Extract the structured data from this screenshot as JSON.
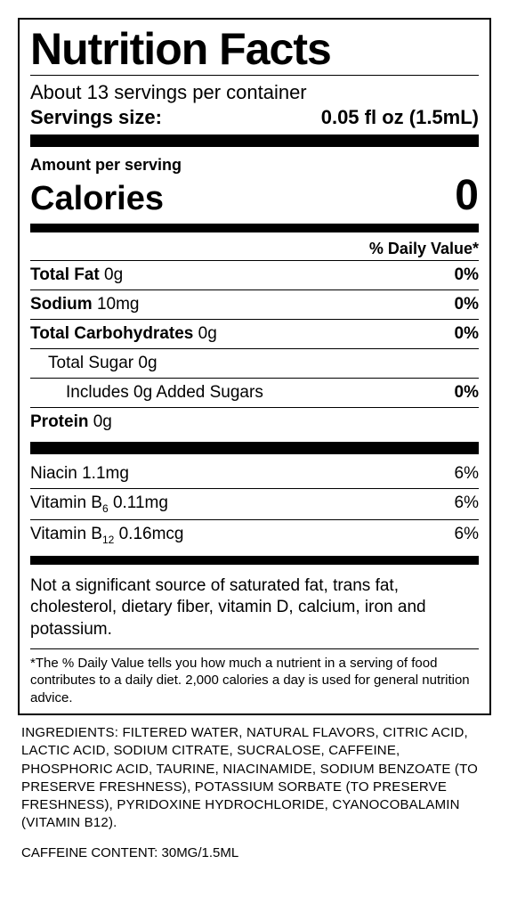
{
  "title": "Nutrition Facts",
  "servings_per_container": "About 13 servings per container",
  "serving_size": {
    "label": "Servings size:",
    "value": "0.05 fl oz (1.5mL)"
  },
  "amount_per_serving": "Amount per serving",
  "calories": {
    "label": "Calories",
    "value": "0"
  },
  "daily_value_header": "% Daily Value*",
  "macros": {
    "total_fat": {
      "label": "Total Fat",
      "amount": "0g",
      "dv": "0%"
    },
    "sodium": {
      "label": "Sodium",
      "amount": "10mg",
      "dv": "0%"
    },
    "total_carb": {
      "label": "Total Carbohydrates",
      "amount": "0g",
      "dv": "0%"
    },
    "total_sugar": {
      "label": "Total Sugar",
      "amount": "0g"
    },
    "added_sugar": {
      "text": "Includes 0g Added Sugars",
      "dv": "0%"
    },
    "protein": {
      "label": "Protein",
      "amount": "0g"
    }
  },
  "vitamins": {
    "niacin": {
      "label": "Niacin",
      "amount": "1.1mg",
      "dv": "6%"
    },
    "b6": {
      "label_pre": "Vitamin B",
      "label_sub": "6",
      "amount": "0.11mg",
      "dv": "6%"
    },
    "b12": {
      "label_pre": "Vitamin B",
      "label_sub": "12",
      "amount": "0.16mcg",
      "dv": "6%"
    }
  },
  "not_significant": "Not a significant source of saturated fat, trans fat, cholesterol, dietary fiber, vitamin D, calcium, iron and potassium.",
  "dv_footnote": "*The % Daily Value tells you how much a nutrient in a serving of food contributes to a daily diet. 2,000 calories a day is used for general nutrition advice.",
  "ingredients": "INGREDIENTS: FILTERED WATER, NATURAL FLAVORS, CITRIC ACID, LACTIC ACID, SODIUM CITRATE, SUCRALOSE, CAFFEINE, PHOSPHORIC ACID, TAURINE, NIACINAMIDE, SODIUM BENZOATE (TO PRESERVE FRESHNESS), POTASSIUM SORBATE (TO PRESERVE FRESHNESS), PYRIDOXINE HYDROCHLORIDE, CYANOCOBALAMIN (VITAMIN B12).",
  "caffeine": "CAFFEINE CONTENT: 30MG/1.5ML"
}
